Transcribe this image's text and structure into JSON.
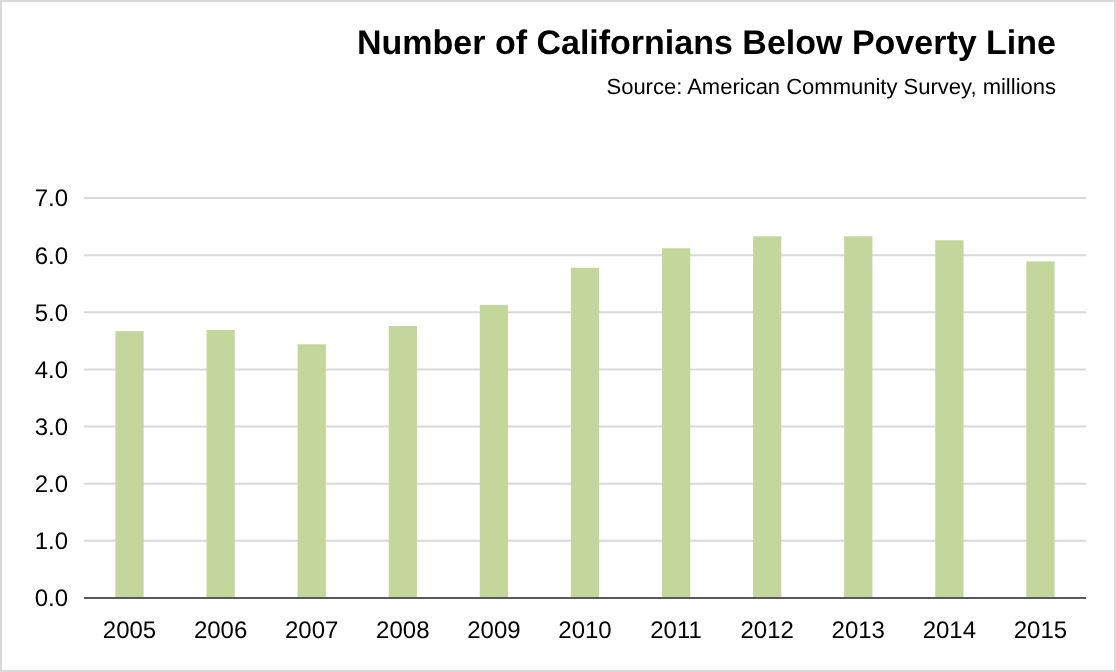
{
  "chart_data": {
    "type": "bar",
    "title": "Number of Californians Below Poverty Line",
    "annotations": [
      "Source:  American Community Survey, millions"
    ],
    "categories": [
      "2005",
      "2006",
      "2007",
      "2008",
      "2009",
      "2010",
      "2011",
      "2012",
      "2013",
      "2014",
      "2015"
    ],
    "values": [
      4.67,
      4.69,
      4.44,
      4.76,
      5.13,
      5.78,
      6.12,
      6.33,
      6.33,
      6.26,
      5.89
    ],
    "color": "#c3d69b",
    "ylim": [
      0,
      7
    ],
    "yticks": [
      {
        "value": 0,
        "label": "0.0"
      },
      {
        "value": 1,
        "label": "1.0"
      },
      {
        "value": 2,
        "label": "2.0"
      },
      {
        "value": 3,
        "label": "3.0"
      },
      {
        "value": 4,
        "label": "4.0"
      },
      {
        "value": 5,
        "label": "5.0"
      },
      {
        "value": 6,
        "label": "6.0"
      },
      {
        "value": 7,
        "label": "7.0"
      }
    ],
    "grid": "y"
  }
}
